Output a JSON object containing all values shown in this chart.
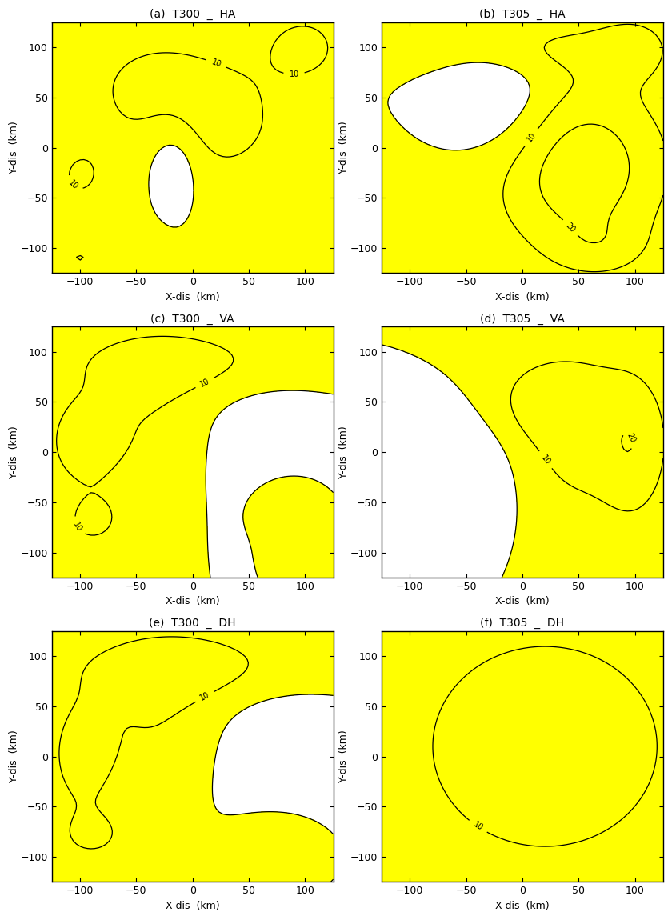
{
  "titles": [
    "(a)  T300  _  HA",
    "(b)  T305  _  HA",
    "(c)  T300  _  VA",
    "(d)  T305  _  VA",
    "(e)  T300  _  DH",
    "(f)  T305  _  DH"
  ],
  "xlabel": "X-dis  (km)",
  "ylabel": "Y-dis  (km)",
  "xlim": [
    -125,
    125
  ],
  "ylim": [
    -125,
    125
  ],
  "xticks": [
    -100,
    -50,
    0,
    50,
    100
  ],
  "yticks": [
    -100,
    -50,
    0,
    50,
    100
  ],
  "contour_interval": 10,
  "yellow_color": "#FFFF00",
  "background_color": "#FFFFFF",
  "figsize": [
    8.4,
    11.5
  ],
  "dpi": 100
}
